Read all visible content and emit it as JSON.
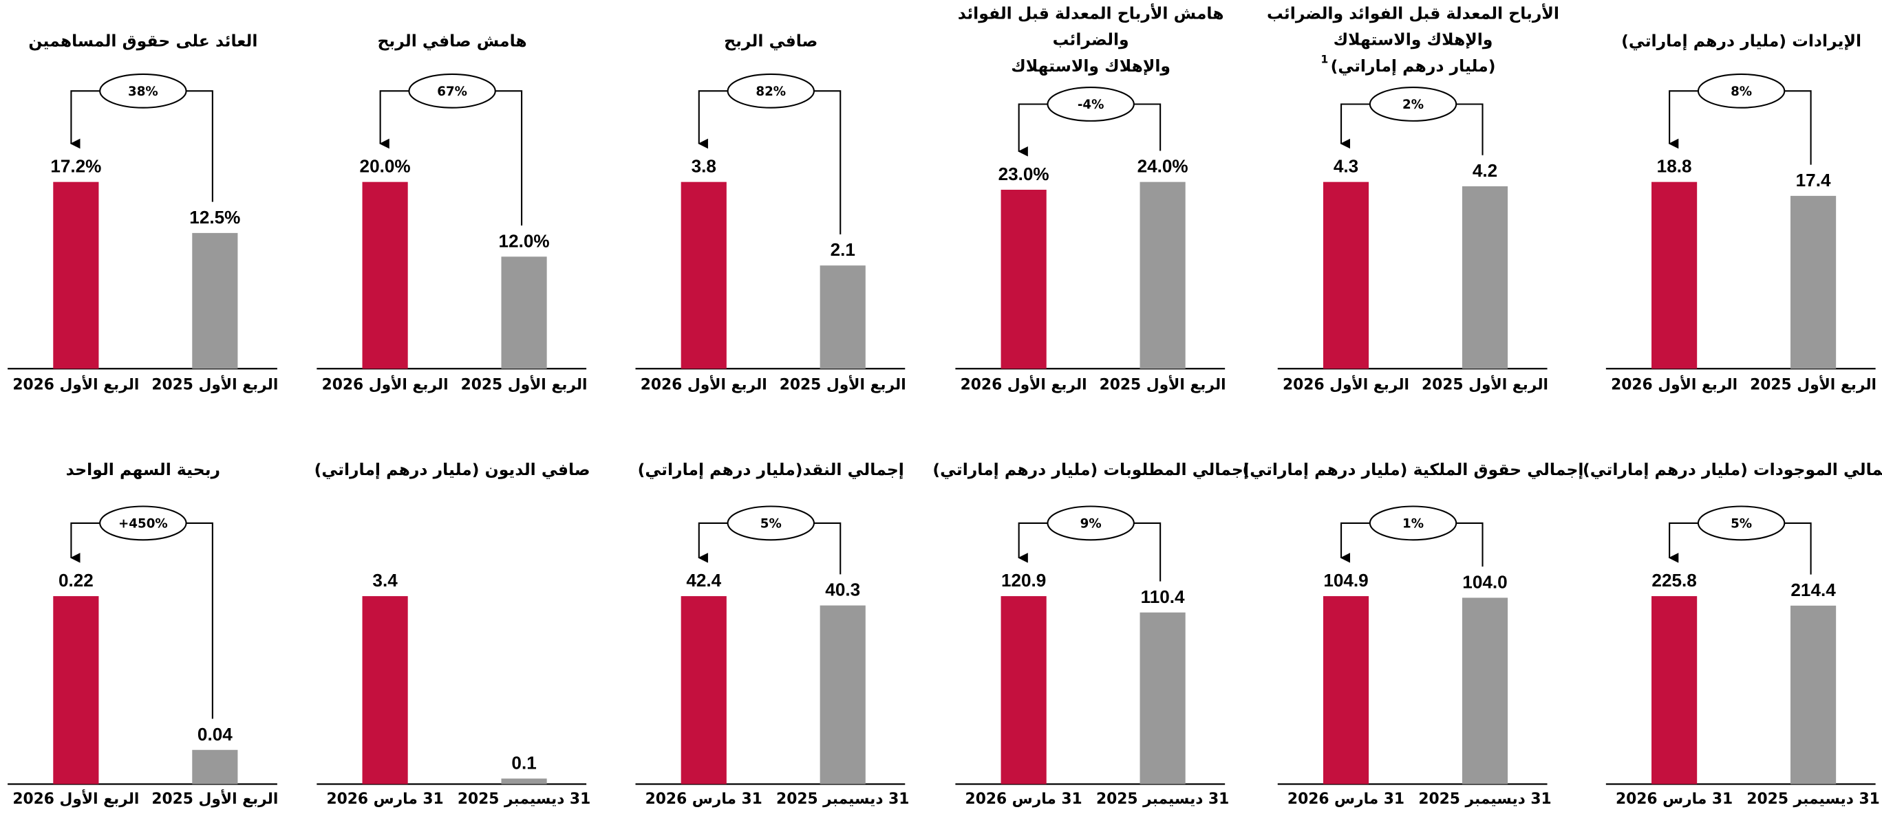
{
  "chart_data": [
    {
      "type": "bar",
      "title": [
        "الإيرادات (مليار درهم إماراتي)"
      ],
      "categories": [
        "الربع الأول 2026",
        "الربع الأول 2025"
      ],
      "values": [
        18.8,
        17.4
      ],
      "value_labels": [
        "18.8",
        "17.4"
      ],
      "colors": [
        "#c4103e",
        "#999999"
      ],
      "change": "8%"
    },
    {
      "type": "bar",
      "title": [
        "الأرباح المعدلة قبل الفوائد والضرائب",
        "والإهلاك والاستهلاك",
        "(مليار درهم إماراتي)"
      ],
      "title_note": "1",
      "categories": [
        "الربع الأول 2026",
        "الربع الأول 2025"
      ],
      "values": [
        4.3,
        4.2
      ],
      "value_labels": [
        "4.3",
        "4.2"
      ],
      "colors": [
        "#c4103e",
        "#999999"
      ],
      "change": "2%"
    },
    {
      "type": "bar",
      "title": [
        "هامش الأرباح المعدلة قبل الفوائد",
        "والضرائب",
        "والإهلاك والاستهلاك"
      ],
      "categories": [
        "الربع الأول 2026",
        "الربع الأول 2025"
      ],
      "values": [
        23.0,
        24.0
      ],
      "value_labels": [
        "23.0%",
        "24.0%"
      ],
      "colors": [
        "#c4103e",
        "#999999"
      ],
      "change": "-4%"
    },
    {
      "type": "bar",
      "title": [
        "صافي الربح"
      ],
      "categories": [
        "الربع الأول 2026",
        "الربع الأول 2025"
      ],
      "values": [
        3.8,
        2.1
      ],
      "value_labels": [
        "3.8",
        "2.1"
      ],
      "colors": [
        "#c4103e",
        "#999999"
      ],
      "change": "82%"
    },
    {
      "type": "bar",
      "title": [
        "هامش صافي الربح"
      ],
      "categories": [
        "الربع الأول 2026",
        "الربع الأول 2025"
      ],
      "values": [
        20.0,
        12.0
      ],
      "value_labels": [
        "20.0%",
        "12.0%"
      ],
      "colors": [
        "#c4103e",
        "#999999"
      ],
      "change": "67%"
    },
    {
      "type": "bar",
      "title": [
        "العائد على حقوق المساهمين"
      ],
      "categories": [
        "الربع الأول 2026",
        "الربع الأول 2025"
      ],
      "values": [
        17.2,
        12.5
      ],
      "value_labels": [
        "17.2%",
        "12.5%"
      ],
      "colors": [
        "#c4103e",
        "#999999"
      ],
      "change": "38%"
    },
    {
      "type": "bar",
      "title": [
        "إجمالي الموجودات (مليار درهم إماراتي)"
      ],
      "categories": [
        "31 مارس 2026",
        "31 ديسيمبر 2025"
      ],
      "values": [
        225.8,
        214.4
      ],
      "value_labels": [
        "225.8",
        "214.4"
      ],
      "colors": [
        "#c4103e",
        "#999999"
      ],
      "change": "5%"
    },
    {
      "type": "bar",
      "title": [
        "إجمالي حقوق الملكية (مليار درهم إماراتي)"
      ],
      "categories": [
        "31 مارس 2026",
        "31 ديسيمبر 2025"
      ],
      "values": [
        104.9,
        104.0
      ],
      "value_labels": [
        "104.9",
        "104.0"
      ],
      "colors": [
        "#c4103e",
        "#999999"
      ],
      "change": "1%"
    },
    {
      "type": "bar",
      "title": [
        "إجمالي المطلوبات (مليار درهم إماراتي)"
      ],
      "categories": [
        "31 مارس 2026",
        "31 ديسيمبر 2025"
      ],
      "values": [
        120.9,
        110.4
      ],
      "value_labels": [
        "120.9",
        "110.4"
      ],
      "colors": [
        "#c4103e",
        "#999999"
      ],
      "change": "9%"
    },
    {
      "type": "bar",
      "title": [
        "إجمالي النقد(مليار درهم إماراتي)"
      ],
      "categories": [
        "31 مارس 2026",
        "31 ديسيمبر 2025"
      ],
      "values": [
        42.4,
        40.3
      ],
      "value_labels": [
        "42.4",
        "40.3"
      ],
      "colors": [
        "#c4103e",
        "#999999"
      ],
      "change": "5%"
    },
    {
      "type": "bar",
      "title": [
        "صافي الديون (مليار درهم إماراتي)"
      ],
      "categories": [
        "31 مارس 2026",
        "31 ديسيمبر 2025"
      ],
      "values": [
        3.4,
        0.1
      ],
      "value_labels": [
        "3.4",
        "0.1"
      ],
      "colors": [
        "#c4103e",
        "#999999"
      ]
    },
    {
      "type": "bar",
      "title": [
        "ربحية السهم الواحد"
      ],
      "categories": [
        "الربع الأول 2026",
        "الربع الأول 2025"
      ],
      "values": [
        0.22,
        0.04
      ],
      "value_labels": [
        "0.22",
        "0.04"
      ],
      "colors": [
        "#c4103e",
        "#999999"
      ],
      "change": "+450%"
    }
  ]
}
